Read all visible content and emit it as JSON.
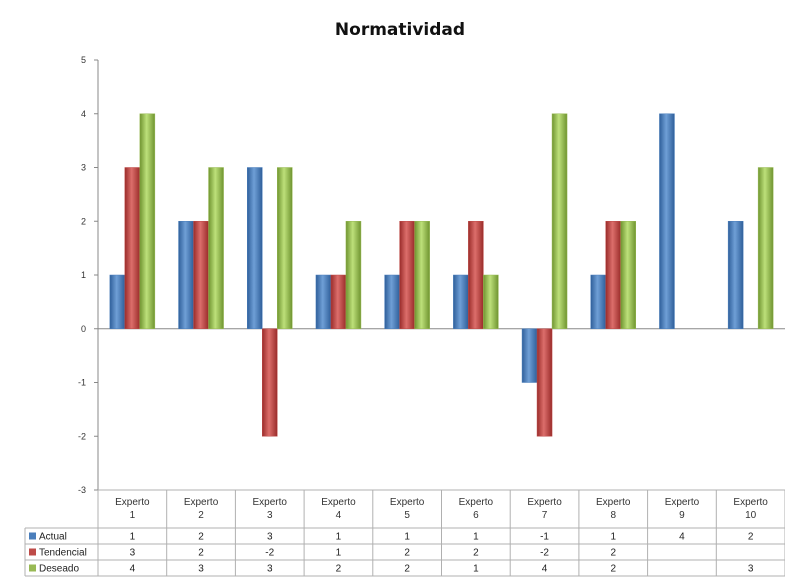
{
  "chart_data": {
    "type": "bar",
    "title": "Normatividad",
    "categories": [
      [
        "Experto",
        "1"
      ],
      [
        "Experto",
        "2"
      ],
      [
        "Experto",
        "3"
      ],
      [
        "Experto",
        "4"
      ],
      [
        "Experto",
        "5"
      ],
      [
        "Experto",
        "6"
      ],
      [
        "Experto",
        "7"
      ],
      [
        "Experto",
        "8"
      ],
      [
        "Experto",
        "9"
      ],
      [
        "Experto",
        "10"
      ]
    ],
    "series": [
      {
        "name": "Actual",
        "color": "#4a7ebb",
        "values": [
          1,
          2,
          3,
          1,
          1,
          1,
          -1,
          1,
          4,
          2
        ]
      },
      {
        "name": "Tendencial",
        "color": "#be4b48",
        "values": [
          3,
          2,
          -2,
          1,
          2,
          2,
          -2,
          2,
          null,
          null
        ]
      },
      {
        "name": "Deseado",
        "color": "#98b954",
        "values": [
          4,
          3,
          3,
          2,
          2,
          1,
          4,
          2,
          null,
          3
        ]
      }
    ],
    "ylim": [
      -3,
      5
    ],
    "yticks": [
      -3,
      -2,
      -1,
      0,
      1,
      2,
      3,
      4,
      5
    ],
    "grid": false,
    "legend": "data-table-left",
    "data_table": true
  }
}
